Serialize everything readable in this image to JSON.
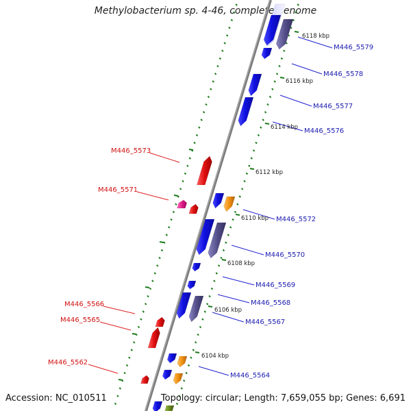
{
  "title": "Methylobacterium sp. 4-46, complete genome",
  "footer": {
    "accession": "Accession: NC_010511",
    "summary": "Topology: circular; Length: 7,659,055 bp; Genes: 6,691"
  },
  "colors": {
    "forward_gene": "#1010e0",
    "forward_gene_alt": "#55508a",
    "orange_gene": "#f09010",
    "reverse_gene": "#e01010",
    "pink_gene": "#e0208a",
    "olive_gene": "#6a8a20",
    "tick": "#1a7a1a",
    "backbone": "#808080",
    "label_forward": "#1a1ab0",
    "label_reverse": "#d01010"
  },
  "kbp_ticks": [
    "6118 kbp",
    "6116 kbp",
    "6114 kbp",
    "6112 kbp",
    "6110 kbp",
    "6108 kbp",
    "6106 kbp",
    "6104 kbp"
  ],
  "forward_labels": [
    "M446_5579",
    "M446_5578",
    "M446_5577",
    "M446_5576",
    "M446_5572",
    "M446_5570",
    "M446_5569",
    "M446_5568",
    "M446_5567",
    "M446_5564"
  ],
  "reverse_labels": [
    "M446_5573",
    "M446_5571",
    "M446_5566",
    "M446_5565",
    "M446_5562"
  ]
}
